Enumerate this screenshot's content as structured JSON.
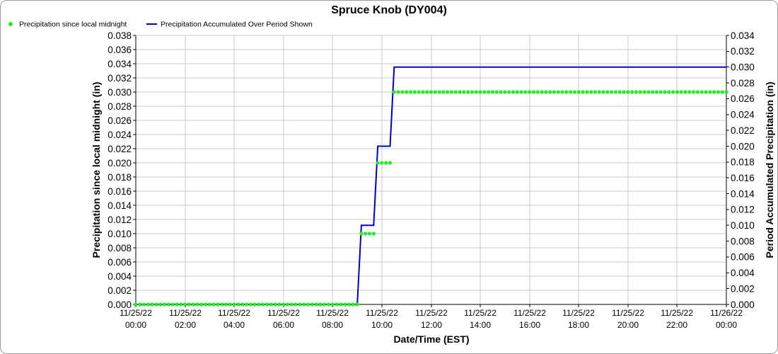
{
  "chart_data": {
    "type": "line",
    "title": "Spruce Knob (DY004)",
    "xlabel": "Date/Time (EST)",
    "ylabel": "Precipitation since local midnight (in)",
    "y2label": "Period Accumulated Precipitation (in)",
    "xlim": [
      "11/25/22 00:00",
      "11/26/22 00:00"
    ],
    "ylim": [
      0,
      0.038
    ],
    "y2lim": [
      0,
      0.034
    ],
    "grid": true,
    "legend": "top-left",
    "x_ticks": [
      {
        "date": "11/25/22",
        "time": "00:00"
      },
      {
        "date": "11/25/22",
        "time": "02:00"
      },
      {
        "date": "11/25/22",
        "time": "04:00"
      },
      {
        "date": "11/25/22",
        "time": "06:00"
      },
      {
        "date": "11/25/22",
        "time": "08:00"
      },
      {
        "date": "11/25/22",
        "time": "10:00"
      },
      {
        "date": "11/25/22",
        "time": "12:00"
      },
      {
        "date": "11/25/22",
        "time": "14:00"
      },
      {
        "date": "11/25/22",
        "time": "16:00"
      },
      {
        "date": "11/25/22",
        "time": "18:00"
      },
      {
        "date": "11/25/22",
        "time": "20:00"
      },
      {
        "date": "11/25/22",
        "time": "22:00"
      },
      {
        "date": "11/26/22",
        "time": "00:00"
      }
    ],
    "y_ticks": [
      "0.000",
      "0.002",
      "0.004",
      "0.006",
      "0.008",
      "0.010",
      "0.012",
      "0.014",
      "0.016",
      "0.018",
      "0.020",
      "0.022",
      "0.024",
      "0.026",
      "0.028",
      "0.030",
      "0.032",
      "0.034",
      "0.036",
      "0.038"
    ],
    "y2_ticks": [
      "0.000",
      "0.002",
      "0.004",
      "0.006",
      "0.008",
      "0.010",
      "0.012",
      "0.014",
      "0.016",
      "0.018",
      "0.020",
      "0.022",
      "0.024",
      "0.026",
      "0.028",
      "0.030",
      "0.032",
      "0.034"
    ],
    "x": [
      "11/25/22 00:00",
      "11/25/22 00:10",
      "11/25/22 00:20",
      "11/25/22 00:30",
      "11/25/22 00:40",
      "11/25/22 00:50",
      "11/25/22 01:00",
      "11/25/22 01:10",
      "11/25/22 01:20",
      "11/25/22 01:30",
      "11/25/22 01:40",
      "11/25/22 01:50",
      "11/25/22 02:00",
      "11/25/22 02:10",
      "11/25/22 02:20",
      "11/25/22 02:30",
      "11/25/22 02:40",
      "11/25/22 02:50",
      "11/25/22 03:00",
      "11/25/22 03:10",
      "11/25/22 03:20",
      "11/25/22 03:30",
      "11/25/22 03:40",
      "11/25/22 03:50",
      "11/25/22 04:00",
      "11/25/22 04:10",
      "11/25/22 04:20",
      "11/25/22 04:30",
      "11/25/22 04:40",
      "11/25/22 04:50",
      "11/25/22 05:00",
      "11/25/22 05:10",
      "11/25/22 05:20",
      "11/25/22 05:30",
      "11/25/22 05:40",
      "11/25/22 05:50",
      "11/25/22 06:00",
      "11/25/22 06:10",
      "11/25/22 06:20",
      "11/25/22 06:30",
      "11/25/22 06:40",
      "11/25/22 06:50",
      "11/25/22 07:00",
      "11/25/22 07:10",
      "11/25/22 07:20",
      "11/25/22 07:30",
      "11/25/22 07:40",
      "11/25/22 07:50",
      "11/25/22 08:00",
      "11/25/22 08:10",
      "11/25/22 08:20",
      "11/25/22 08:30",
      "11/25/22 08:40",
      "11/25/22 08:50",
      "11/25/22 09:00",
      "11/25/22 09:10",
      "11/25/22 09:20",
      "11/25/22 09:30",
      "11/25/22 09:40",
      "11/25/22 09:50",
      "11/25/22 10:00",
      "11/25/22 10:10",
      "11/25/22 10:20",
      "11/25/22 10:30",
      "11/25/22 10:40",
      "11/25/22 10:50",
      "11/25/22 11:00",
      "11/25/22 11:10",
      "11/25/22 11:20",
      "11/25/22 11:30",
      "11/25/22 11:40",
      "11/25/22 11:50",
      "11/25/22 12:00",
      "11/25/22 12:10",
      "11/25/22 12:20",
      "11/25/22 12:30",
      "11/25/22 12:40",
      "11/25/22 12:50",
      "11/25/22 13:00",
      "11/25/22 13:10",
      "11/25/22 13:20",
      "11/25/22 13:30",
      "11/25/22 13:40",
      "11/25/22 13:50",
      "11/25/22 14:00",
      "11/25/22 14:10",
      "11/25/22 14:20",
      "11/25/22 14:30",
      "11/25/22 14:40",
      "11/25/22 14:50",
      "11/25/22 15:00",
      "11/25/22 15:10",
      "11/25/22 15:20",
      "11/25/22 15:30",
      "11/25/22 15:40",
      "11/25/22 15:50",
      "11/25/22 16:00",
      "11/25/22 16:10",
      "11/25/22 16:20",
      "11/25/22 16:30",
      "11/25/22 16:40",
      "11/25/22 16:50",
      "11/25/22 17:00",
      "11/25/22 17:10",
      "11/25/22 17:20",
      "11/25/22 17:30",
      "11/25/22 17:40",
      "11/25/22 17:50",
      "11/25/22 18:00",
      "11/25/22 18:10",
      "11/25/22 18:20",
      "11/25/22 18:30",
      "11/25/22 18:40",
      "11/25/22 18:50",
      "11/25/22 19:00",
      "11/25/22 19:10",
      "11/25/22 19:20",
      "11/25/22 19:30",
      "11/25/22 19:40",
      "11/25/22 19:50",
      "11/25/22 20:00",
      "11/25/22 20:10",
      "11/25/22 20:20",
      "11/25/22 20:30",
      "11/25/22 20:40",
      "11/25/22 20:50",
      "11/25/22 21:00",
      "11/25/22 21:10",
      "11/25/22 21:20",
      "11/25/22 21:30",
      "11/25/22 21:40",
      "11/25/22 21:50",
      "11/25/22 22:00",
      "11/25/22 22:10",
      "11/25/22 22:20",
      "11/25/22 22:30",
      "11/25/22 22:40",
      "11/25/22 22:50",
      "11/25/22 23:00",
      "11/25/22 23:10",
      "11/25/22 23:20",
      "11/25/22 23:30",
      "11/25/22 23:40",
      "11/25/22 23:50",
      "11/26/22 00:00"
    ],
    "series": [
      {
        "name": "Precipitation since local midnight",
        "axis": "left",
        "style": "markers",
        "color": "#22ee22",
        "values": [
          0,
          0,
          0,
          0,
          0,
          0,
          0,
          0,
          0,
          0,
          0,
          0,
          0,
          0,
          0,
          0,
          0,
          0,
          0,
          0,
          0,
          0,
          0,
          0,
          0,
          0,
          0,
          0,
          0,
          0,
          0,
          0,
          0,
          0,
          0,
          0,
          0,
          0,
          0,
          0,
          0,
          0,
          0,
          0,
          0,
          0,
          0,
          0,
          0,
          0,
          0,
          0,
          0,
          0,
          0,
          0.01,
          0.01,
          0.01,
          0.01,
          0.02,
          0.02,
          0.02,
          0.02,
          0.03,
          0.03,
          0.03,
          0.03,
          0.03,
          0.03,
          0.03,
          0.03,
          0.03,
          0.03,
          0.03,
          0.03,
          0.03,
          0.03,
          0.03,
          0.03,
          0.03,
          0.03,
          0.03,
          0.03,
          0.03,
          0.03,
          0.03,
          0.03,
          0.03,
          0.03,
          0.03,
          0.03,
          0.03,
          0.03,
          0.03,
          0.03,
          0.03,
          0.03,
          0.03,
          0.03,
          0.03,
          0.03,
          0.03,
          0.03,
          0.03,
          0.03,
          0.03,
          0.03,
          0.03,
          0.03,
          0.03,
          0.03,
          0.03,
          0.03,
          0.03,
          0.03,
          0.03,
          0.03,
          0.03,
          0.03,
          0.03,
          0.03,
          0.03,
          0.03,
          0.03,
          0.03,
          0.03,
          0.03,
          0.03,
          0.03,
          0.03,
          0.03,
          0.03,
          0.03,
          0.03,
          0.03,
          0.03,
          0.03,
          0.03,
          0.03,
          0.03,
          0.03,
          0.03,
          0.03,
          0.03,
          0.03
        ]
      },
      {
        "name": "Precipitation Accumulated Over Period Shown",
        "axis": "right",
        "style": "line",
        "color": "#0000cc",
        "values": [
          0,
          0,
          0,
          0,
          0,
          0,
          0,
          0,
          0,
          0,
          0,
          0,
          0,
          0,
          0,
          0,
          0,
          0,
          0,
          0,
          0,
          0,
          0,
          0,
          0,
          0,
          0,
          0,
          0,
          0,
          0,
          0,
          0,
          0,
          0,
          0,
          0,
          0,
          0,
          0,
          0,
          0,
          0,
          0,
          0,
          0,
          0,
          0,
          0,
          0,
          0,
          0,
          0,
          0,
          0,
          0.01,
          0.01,
          0.01,
          0.01,
          0.02,
          0.02,
          0.02,
          0.02,
          0.03,
          0.03,
          0.03,
          0.03,
          0.03,
          0.03,
          0.03,
          0.03,
          0.03,
          0.03,
          0.03,
          0.03,
          0.03,
          0.03,
          0.03,
          0.03,
          0.03,
          0.03,
          0.03,
          0.03,
          0.03,
          0.03,
          0.03,
          0.03,
          0.03,
          0.03,
          0.03,
          0.03,
          0.03,
          0.03,
          0.03,
          0.03,
          0.03,
          0.03,
          0.03,
          0.03,
          0.03,
          0.03,
          0.03,
          0.03,
          0.03,
          0.03,
          0.03,
          0.03,
          0.03,
          0.03,
          0.03,
          0.03,
          0.03,
          0.03,
          0.03,
          0.03,
          0.03,
          0.03,
          0.03,
          0.03,
          0.03,
          0.03,
          0.03,
          0.03,
          0.03,
          0.03,
          0.03,
          0.03,
          0.03,
          0.03,
          0.03,
          0.03,
          0.03,
          0.03,
          0.03,
          0.03,
          0.03,
          0.03,
          0.03,
          0.03,
          0.03,
          0.03,
          0.03,
          0.03,
          0.03,
          0.03
        ]
      }
    ]
  }
}
